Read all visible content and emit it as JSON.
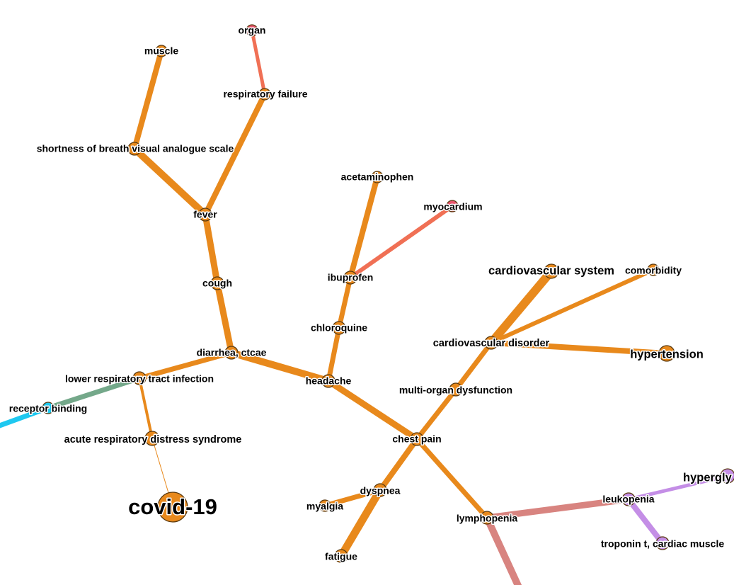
{
  "colors": {
    "orange": "#e8891c",
    "red": "#f07055",
    "pink": "#e8566e",
    "cyan": "#1ec8f0",
    "teal": "#74a88a",
    "purple": "#c48ee6",
    "rose": "#d88480"
  },
  "graph": {
    "nodes": [
      {
        "id": "organ",
        "label": "organ",
        "color": "pink"
      },
      {
        "id": "muscle",
        "label": "muscle",
        "color": "orange"
      },
      {
        "id": "respiratory_failure",
        "label": "respiratory failure",
        "color": "orange"
      },
      {
        "id": "sob_vas",
        "label": "shortness of breath visual analogue scale",
        "color": "orange"
      },
      {
        "id": "acetaminophen",
        "label": "acetaminophen",
        "color": "orange"
      },
      {
        "id": "myocardium",
        "label": "myocardium",
        "color": "pink"
      },
      {
        "id": "fever",
        "label": "fever",
        "color": "orange"
      },
      {
        "id": "cough",
        "label": "cough",
        "color": "orange"
      },
      {
        "id": "ibuprofen",
        "label": "ibuprofen",
        "color": "orange"
      },
      {
        "id": "cardiovascular_system",
        "label": "cardiovascular system",
        "color": "orange"
      },
      {
        "id": "comorbidity",
        "label": "comorbidity",
        "color": "orange"
      },
      {
        "id": "chloroquine",
        "label": "chloroquine",
        "color": "orange"
      },
      {
        "id": "cardiovascular_disorder",
        "label": "cardiovascular disorder",
        "color": "orange"
      },
      {
        "id": "hypertension",
        "label": "hypertension",
        "color": "orange"
      },
      {
        "id": "diarrhea_ctcae",
        "label": "diarrhea, ctcae",
        "color": "orange"
      },
      {
        "id": "lrti",
        "label": "lower respiratory tract infection",
        "color": "orange"
      },
      {
        "id": "headache",
        "label": "headache",
        "color": "orange"
      },
      {
        "id": "multi_organ_dysfunction",
        "label": "multi-organ dysfunction",
        "color": "orange"
      },
      {
        "id": "receptor_binding",
        "label": "receptor binding",
        "color": "cyan"
      },
      {
        "id": "chest_pain",
        "label": "chest pain",
        "color": "orange"
      },
      {
        "id": "ards",
        "label": "acute respiratory distress syndrome",
        "color": "orange"
      },
      {
        "id": "hypergly",
        "label": "hypergly",
        "color": "purple"
      },
      {
        "id": "dyspnea",
        "label": "dyspnea",
        "color": "orange"
      },
      {
        "id": "leukopenia",
        "label": "leukopenia",
        "color": "purple"
      },
      {
        "id": "covid19",
        "label": "covid-19",
        "color": "orange"
      },
      {
        "id": "myalgia",
        "label": "myalgia",
        "color": "orange"
      },
      {
        "id": "lymphopenia",
        "label": "lymphopenia",
        "color": "orange"
      },
      {
        "id": "troponin",
        "label": "troponin t, cardiac muscle",
        "color": "purple"
      },
      {
        "id": "fatigue",
        "label": "fatigue",
        "color": "orange"
      }
    ],
    "edges": [
      {
        "source": "organ",
        "target": "respiratory_failure",
        "color": "red"
      },
      {
        "source": "respiratory_failure",
        "target": "fever",
        "color": "orange"
      },
      {
        "source": "muscle",
        "target": "sob_vas",
        "color": "orange"
      },
      {
        "source": "sob_vas",
        "target": "fever",
        "color": "orange"
      },
      {
        "source": "fever",
        "target": "cough",
        "color": "orange"
      },
      {
        "source": "cough",
        "target": "diarrhea_ctcae",
        "color": "orange"
      },
      {
        "source": "diarrhea_ctcae",
        "target": "lrti",
        "color": "orange"
      },
      {
        "source": "diarrhea_ctcae",
        "target": "headache",
        "color": "orange"
      },
      {
        "source": "lrti",
        "target": "receptor_binding",
        "color": "teal"
      },
      {
        "source": "receptor_binding",
        "target": "offscreen_left",
        "color": "cyan"
      },
      {
        "source": "lrti",
        "target": "ards",
        "color": "orange"
      },
      {
        "source": "ards",
        "target": "covid19",
        "color": "orange"
      },
      {
        "source": "acetaminophen",
        "target": "ibuprofen",
        "color": "orange"
      },
      {
        "source": "ibuprofen",
        "target": "myocardium",
        "color": "red"
      },
      {
        "source": "ibuprofen",
        "target": "chloroquine",
        "color": "orange"
      },
      {
        "source": "chloroquine",
        "target": "headache",
        "color": "orange"
      },
      {
        "source": "headache",
        "target": "chest_pain",
        "color": "orange"
      },
      {
        "source": "chest_pain",
        "target": "multi_organ_dysfunction",
        "color": "orange"
      },
      {
        "source": "multi_organ_dysfunction",
        "target": "cardiovascular_disorder",
        "color": "orange"
      },
      {
        "source": "cardiovascular_disorder",
        "target": "cardiovascular_system",
        "color": "orange"
      },
      {
        "source": "cardiovascular_disorder",
        "target": "comorbidity",
        "color": "orange"
      },
      {
        "source": "cardiovascular_disorder",
        "target": "hypertension",
        "color": "orange"
      },
      {
        "source": "chest_pain",
        "target": "dyspnea",
        "color": "orange"
      },
      {
        "source": "dyspnea",
        "target": "myalgia",
        "color": "orange"
      },
      {
        "source": "dyspnea",
        "target": "fatigue",
        "color": "orange"
      },
      {
        "source": "chest_pain",
        "target": "lymphopenia",
        "color": "orange"
      },
      {
        "source": "lymphopenia",
        "target": "leukopenia",
        "color": "rose"
      },
      {
        "source": "lymphopenia",
        "target": "offscreen_bottom",
        "color": "rose"
      },
      {
        "source": "leukopenia",
        "target": "hypergly",
        "color": "purple"
      },
      {
        "source": "leukopenia",
        "target": "troponin",
        "color": "purple"
      }
    ]
  }
}
